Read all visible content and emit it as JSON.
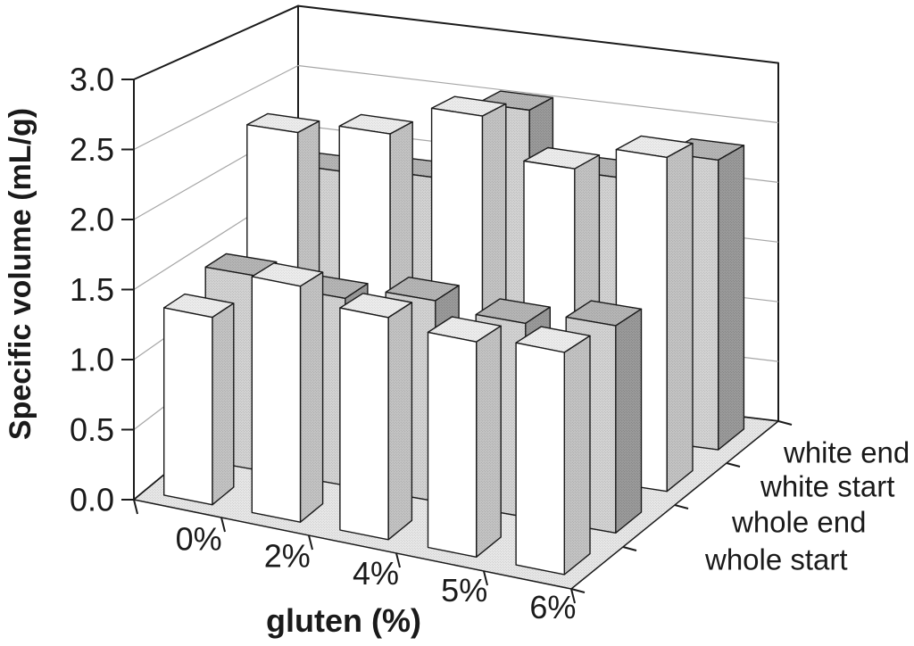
{
  "page": {
    "background": "#ffffff"
  },
  "chart_data": {
    "type": "bar",
    "variant": "3d-column",
    "title": "",
    "xlabel": "gluten (%)",
    "ylabel": "Specific volume (mL/g)",
    "categories": [
      "0%",
      "2%",
      "4%",
      "5%",
      "6%"
    ],
    "series": [
      {
        "name": "whole start",
        "values": [
          1.35,
          1.7,
          1.6,
          1.55,
          1.6
        ],
        "face": "white"
      },
      {
        "name": "whole end",
        "values": [
          1.45,
          1.4,
          1.5,
          1.45,
          1.55
        ],
        "face": "gray-stipple"
      },
      {
        "name": "white start",
        "values": [
          2.35,
          2.45,
          2.7,
          2.4,
          2.6
        ],
        "face": "white"
      },
      {
        "name": "white end",
        "values": [
          1.85,
          1.9,
          2.55,
          2.1,
          2.35
        ],
        "face": "gray-stipple"
      }
    ],
    "ylim": [
      0.0,
      3.0
    ],
    "y_tick_step": 0.5,
    "y_ticks": [
      0.0,
      0.5,
      1.0,
      1.5,
      2.0,
      2.5,
      3.0
    ],
    "grid": true,
    "legend_position": "right-depth-axis",
    "palette": {
      "ink": "#1a1a1a",
      "grid_line": "#a6a6a6",
      "wall": "#ffffff",
      "white_face": "#ffffff",
      "light_cap_bg": "#efefef",
      "light_cap_dot": "#c9c9c9",
      "light_side_bg": "#c6c6c6",
      "light_side_dot": "#9d9d9d",
      "gray_face_bg": "#d6d6d6",
      "gray_face_dot": "#a8a8a8",
      "gray_cap_bg": "#b9b9b9",
      "gray_cap_dot": "#8f8f8f",
      "dark_side_bg": "#9d9d9d",
      "dark_side_dot": "#757575",
      "floor_bg": "#eaeaea",
      "floor_dot": "#bdbdbd"
    }
  }
}
